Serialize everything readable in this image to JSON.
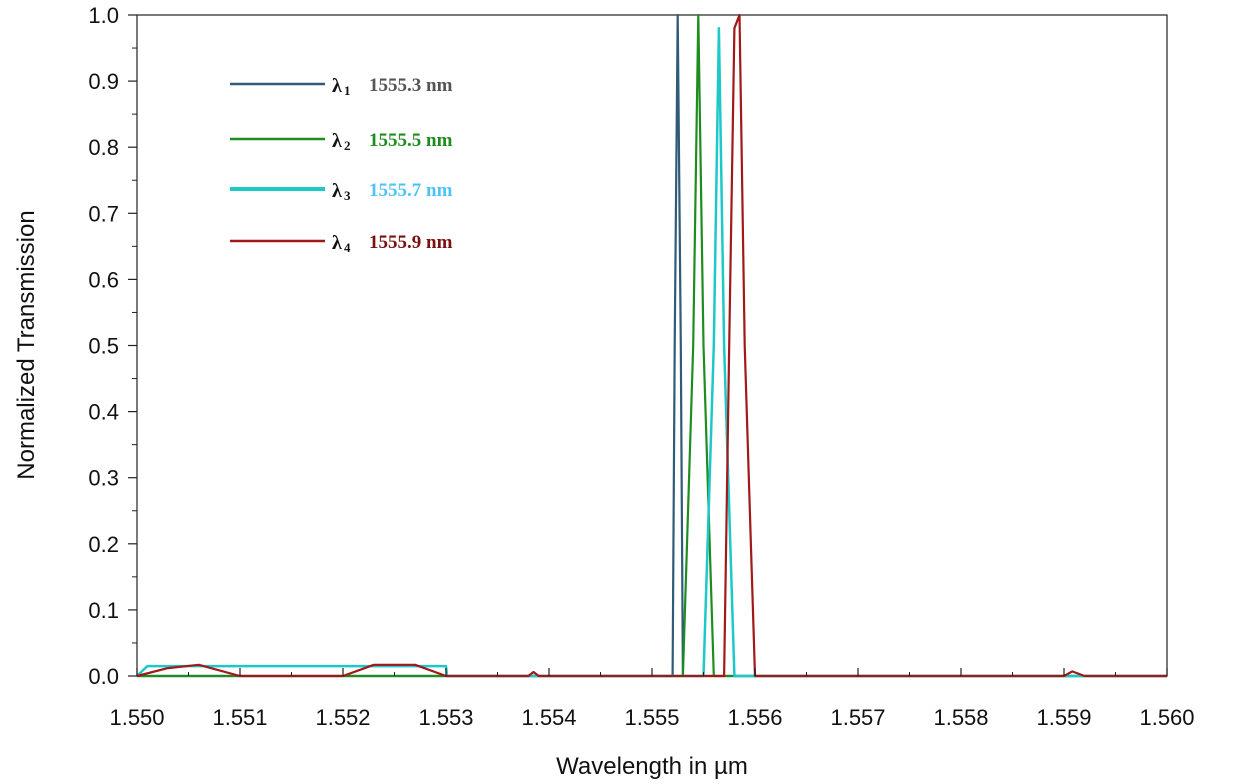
{
  "chart_data": {
    "type": "line",
    "xlabel": "Wavelength in µm",
    "ylabel": "Normalized Transmission",
    "xlim": [
      1.55,
      1.56
    ],
    "ylim": [
      0,
      1.0
    ],
    "x_ticks": [
      "1.550",
      "1.551",
      "1.552",
      "1.553",
      "1.554",
      "1.555",
      "1.556",
      "1.557",
      "1.558",
      "1.559",
      "1.560"
    ],
    "y_ticks": [
      "0.0",
      "0.1",
      "0.2",
      "0.3",
      "0.4",
      "0.5",
      "0.6",
      "0.7",
      "0.8",
      "0.9",
      "1.0"
    ],
    "grid": false,
    "legend_position": "top-left",
    "series": [
      {
        "name": "λ1 1555.3 nm",
        "symbol": "λ",
        "subscript": "1",
        "label": "1555.3 nm",
        "color": "#2f5a78",
        "label_color": "#555555",
        "x": [
          1.55,
          1.5552,
          1.55522,
          1.55525,
          1.55528,
          1.5553,
          1.5554,
          1.56
        ],
        "y": [
          0.0,
          0.0,
          0.5,
          1.0,
          0.5,
          0.0,
          0.0,
          0.0
        ]
      },
      {
        "name": "λ2 1555.5 nm",
        "symbol": "λ",
        "subscript": "2",
        "label": "1555.5 nm",
        "color": "#1e8c1e",
        "label_color": "#1e8c1e",
        "x": [
          1.55,
          1.5553,
          1.5554,
          1.55545,
          1.5555,
          1.5556,
          1.56
        ],
        "y": [
          0.0,
          0.0,
          0.5,
          1.0,
          0.5,
          0.0,
          0.0
        ]
      },
      {
        "name": "λ3 1555.7 nm",
        "symbol": "λ",
        "subscript": "3",
        "label": "1555.7 nm",
        "color": "#1ec8c8",
        "label_color": "#4fc3f7",
        "x": [
          1.55,
          1.5501,
          1.553,
          1.55301,
          1.5555,
          1.5556,
          1.55565,
          1.5557,
          1.5558,
          1.56
        ],
        "y": [
          0.0,
          0.015,
          0.015,
          0.0,
          0.0,
          0.5,
          0.98,
          0.5,
          0.0,
          0.0
        ]
      },
      {
        "name": "λ4 1555.9 nm",
        "symbol": "λ",
        "subscript": "4",
        "label": "1555.9 nm",
        "color": "#a01818",
        "label_color": "#7a1010",
        "x": [
          1.55,
          1.5503,
          1.5506,
          1.551,
          1.552,
          1.5523,
          1.5527,
          1.553,
          1.5538,
          1.55385,
          1.5539,
          1.5557,
          1.55575,
          1.5558,
          1.55585,
          1.5559,
          1.556,
          1.559,
          1.55908,
          1.5592,
          1.56
        ],
        "y": [
          0.0,
          0.012,
          0.017,
          0.0,
          0.0,
          0.017,
          0.017,
          0.0,
          0.0,
          0.006,
          0.0,
          0.0,
          0.5,
          0.98,
          1.0,
          0.5,
          0.0,
          0.0,
          0.007,
          0.0,
          0.0
        ]
      }
    ]
  }
}
